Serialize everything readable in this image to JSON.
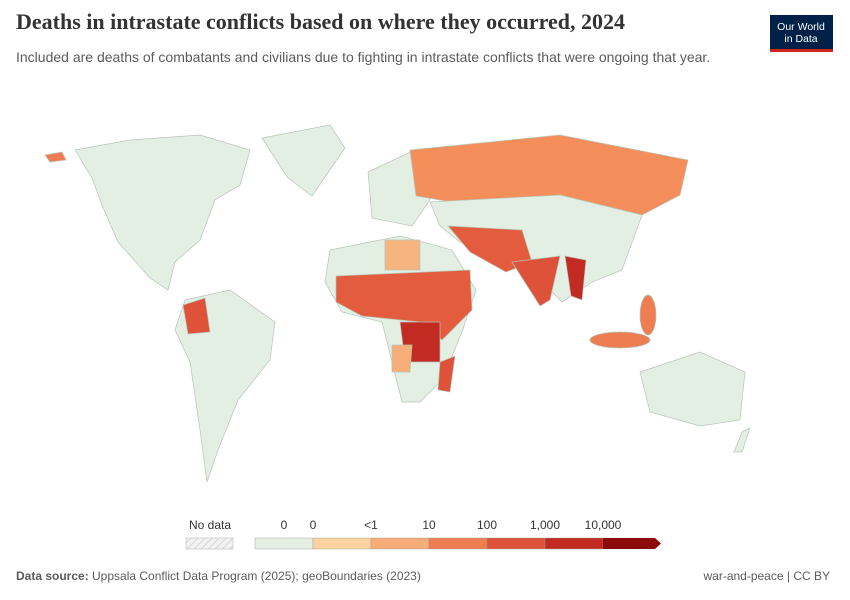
{
  "header": {
    "title": "Deaths in intrastate conflicts based on where they occurred, 2024",
    "subtitle": "Included are deaths of combatants and civilians due to fighting in intrastate conflicts that were ongoing that year."
  },
  "logo": {
    "line1": "Our World",
    "line2": "in Data"
  },
  "legend": {
    "no_data": "No data",
    "bins": [
      "#e4efe4",
      "#fcd29f",
      "#f6ad78",
      "#ee7d52",
      "#de523a",
      "#c22b22",
      "#8b0a0a"
    ],
    "ticks": [
      "0",
      "0",
      "<1",
      "10",
      "100",
      "1,000",
      "10,000"
    ]
  },
  "footer": {
    "source_label": "Data source:",
    "source": "Uppsala Conflict Data Program (2025); geoBoundaries (2023)",
    "license": "war-and-peace | CC BY"
  }
}
